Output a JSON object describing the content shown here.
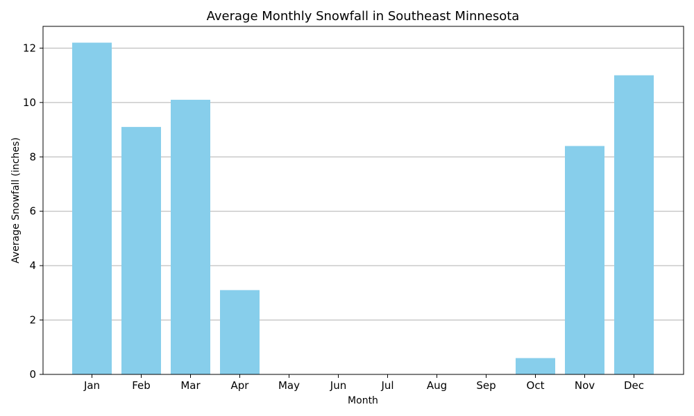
{
  "chart_data": {
    "type": "bar",
    "title": "Average Monthly Snowfall in Southeast Minnesota",
    "xlabel": "Month",
    "ylabel": "Average Snowfall (inches)",
    "categories": [
      "Jan",
      "Feb",
      "Mar",
      "Apr",
      "May",
      "Jun",
      "Jul",
      "Aug",
      "Sep",
      "Oct",
      "Nov",
      "Dec"
    ],
    "values": [
      12.2,
      9.1,
      10.1,
      3.1,
      0,
      0,
      0,
      0,
      0,
      0.6,
      8.4,
      11.0
    ],
    "ylim": [
      0,
      12.8
    ],
    "yticks": [
      0,
      2,
      4,
      6,
      8,
      10,
      12
    ],
    "grid": "y",
    "bar_color": "#87CEEB",
    "grid_color": "#b0b0b0"
  }
}
